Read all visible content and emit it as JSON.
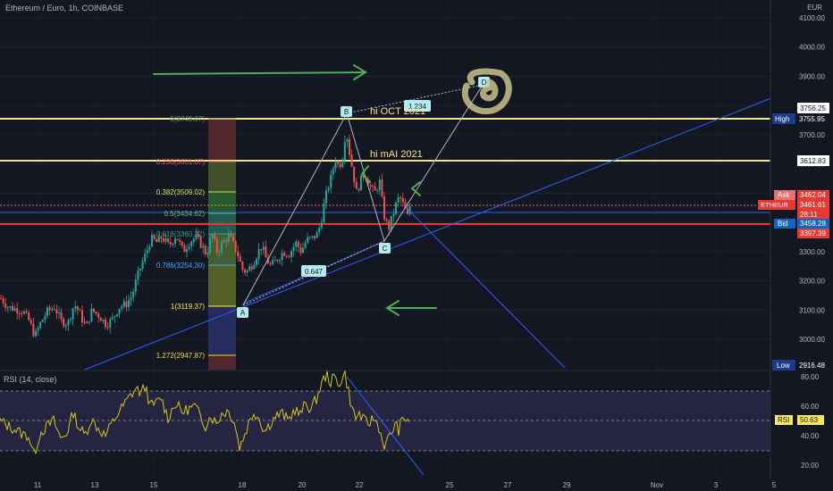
{
  "header": {
    "symbol": "Ethereum / Euro, 1h, COINBASE",
    "currency": "EUR",
    "rsi_label": "RSI (14, close)"
  },
  "colors": {
    "background": "#131722",
    "grid": "#1e222d",
    "up": "#26a69a",
    "down": "#ef5350",
    "rsi_line": "#d4c41a",
    "rsi_band": "#4a3f7a",
    "trendline": "#2962ff",
    "level_line": "#f0e68c",
    "bid_line": "#e53935",
    "arrow": "#4caf50"
  },
  "axis": {
    "price_ticks": [
      "4100.00",
      "4000.00",
      "3900.00",
      "3800.00",
      "3700.00",
      "3600.00",
      "3500.00",
      "3400.00",
      "3300.00",
      "3200.00",
      "3100.00",
      "3000.00"
    ],
    "rsi_ticks": [
      "80.00",
      "60.00",
      "40.00",
      "20.00"
    ],
    "time_ticks": [
      "11",
      "13",
      "15",
      "18",
      "20",
      "22",
      "25",
      "27",
      "29",
      "Nov",
      "3",
      "5"
    ]
  },
  "price_labels": {
    "level1": "3756.25",
    "high": "3755.95",
    "high_text": "High",
    "level2": "3612.83",
    "ask": "3462.04",
    "ask_text": "Ask",
    "symbol_tag": "ETHEUR",
    "last": "3461.61",
    "countdown": "28:11",
    "bid": "3458.28",
    "bid_text": "Bid",
    "support": "3397.39",
    "low": "2916.48",
    "low_text": "Low",
    "rsi_tag": "RSI",
    "rsi_value": "50.63"
  },
  "fib_levels": [
    "0(3749.07)",
    "0.236(3601.07)",
    "0.382(3509.02)",
    "0.5(3434.62)",
    "0.618(3360.22)",
    "0.786(3254.30)",
    "1(3119.37)",
    "1.272(2947.87)"
  ],
  "annotations": {
    "hi_oct": "hi OCT 2021",
    "hi_mai": "hi mAI 2021",
    "point_a": "A",
    "point_b": "B",
    "point_c": "C",
    "point_d": "D",
    "ratio_bc": "0.647",
    "ratio_cd": "1.234"
  },
  "chart_data": {
    "type": "candlestick",
    "ylim": [
      2916.48,
      4100
    ],
    "rsi_ylim": [
      20,
      80
    ],
    "trend": [
      [
        0,
        3140
      ],
      [
        8,
        3110
      ],
      [
        15,
        3105
      ],
      [
        25,
        3095
      ],
      [
        32,
        3060
      ],
      [
        38,
        3010
      ],
      [
        45,
        3060
      ],
      [
        52,
        3095
      ],
      [
        60,
        3110
      ],
      [
        68,
        3060
      ],
      [
        75,
        3055
      ],
      [
        82,
        3120
      ],
      [
        88,
        3090
      ],
      [
        95,
        3040
      ],
      [
        102,
        3100
      ],
      [
        110,
        3080
      ],
      [
        118,
        3050
      ],
      [
        125,
        3070
      ],
      [
        132,
        3110
      ],
      [
        140,
        3120
      ],
      [
        147,
        3150
      ],
      [
        152,
        3210
      ],
      [
        158,
        3260
      ],
      [
        163,
        3300
      ],
      [
        168,
        3345
      ],
      [
        175,
        3330
      ],
      [
        180,
        3350
      ],
      [
        188,
        3320
      ],
      [
        196,
        3355
      ],
      [
        204,
        3300
      ],
      [
        210,
        3330
      ],
      [
        218,
        3350
      ],
      [
        225,
        3320
      ],
      [
        230,
        3290
      ],
      [
        236,
        3360
      ],
      [
        242,
        3300
      ],
      [
        248,
        3330
      ],
      [
        255,
        3355
      ],
      [
        260,
        3325
      ],
      [
        265,
        3290
      ],
      [
        270,
        3240
      ],
      [
        275,
        3230
      ],
      [
        282,
        3260
      ],
      [
        288,
        3300
      ],
      [
        292,
        3320
      ],
      [
        296,
        3280
      ],
      [
        302,
        3250
      ],
      [
        308,
        3270
      ],
      [
        316,
        3300
      ],
      [
        322,
        3290
      ],
      [
        330,
        3330
      ],
      [
        336,
        3300
      ],
      [
        342,
        3340
      ],
      [
        348,
        3345
      ],
      [
        354,
        3360
      ],
      [
        358,
        3400
      ],
      [
        362,
        3470
      ],
      [
        366,
        3520
      ],
      [
        370,
        3560
      ],
      [
        374,
        3620
      ],
      [
        378,
        3590
      ],
      [
        382,
        3620
      ],
      [
        386,
        3720
      ],
      [
        390,
        3640
      ],
      [
        394,
        3570
      ],
      [
        398,
        3500
      ],
      [
        402,
        3540
      ],
      [
        407,
        3570
      ],
      [
        412,
        3530
      ],
      [
        418,
        3500
      ],
      [
        424,
        3540
      ],
      [
        428,
        3430
      ],
      [
        431,
        3400
      ],
      [
        434,
        3380
      ],
      [
        438,
        3420
      ],
      [
        442,
        3460
      ],
      [
        446,
        3490
      ],
      [
        450,
        3460
      ],
      [
        455,
        3420
      ],
      [
        458,
        3462
      ]
    ],
    "rsi": [
      [
        0,
        50
      ],
      [
        8,
        47
      ],
      [
        15,
        45
      ],
      [
        25,
        41
      ],
      [
        32,
        40
      ],
      [
        38,
        27
      ],
      [
        45,
        42
      ],
      [
        52,
        46
      ],
      [
        60,
        50
      ],
      [
        68,
        38
      ],
      [
        75,
        42
      ],
      [
        82,
        56
      ],
      [
        88,
        46
      ],
      [
        95,
        40
      ],
      [
        102,
        51
      ],
      [
        110,
        45
      ],
      [
        118,
        40
      ],
      [
        125,
        48
      ],
      [
        132,
        55
      ],
      [
        140,
        62
      ],
      [
        147,
        68
      ],
      [
        152,
        72
      ],
      [
        158,
        69
      ],
      [
        163,
        74
      ],
      [
        168,
        60
      ],
      [
        175,
        62
      ],
      [
        180,
        66
      ],
      [
        188,
        52
      ],
      [
        196,
        62
      ],
      [
        204,
        56
      ],
      [
        210,
        58
      ],
      [
        218,
        60
      ],
      [
        225,
        52
      ],
      [
        230,
        47
      ],
      [
        236,
        54
      ],
      [
        242,
        48
      ],
      [
        248,
        55
      ],
      [
        255,
        57
      ],
      [
        262,
        50
      ],
      [
        268,
        32
      ],
      [
        272,
        38
      ],
      [
        278,
        48
      ],
      [
        284,
        56
      ],
      [
        290,
        52
      ],
      [
        296,
        43
      ],
      [
        302,
        48
      ],
      [
        308,
        53
      ],
      [
        316,
        55
      ],
      [
        322,
        50
      ],
      [
        330,
        58
      ],
      [
        336,
        54
      ],
      [
        342,
        62
      ],
      [
        348,
        58
      ],
      [
        354,
        65
      ],
      [
        358,
        72
      ],
      [
        362,
        78
      ],
      [
        366,
        82
      ],
      [
        370,
        76
      ],
      [
        374,
        80
      ],
      [
        378,
        75
      ],
      [
        382,
        78
      ],
      [
        386,
        82
      ],
      [
        390,
        70
      ],
      [
        394,
        58
      ],
      [
        398,
        52
      ],
      [
        402,
        55
      ],
      [
        407,
        50
      ],
      [
        412,
        48
      ],
      [
        418,
        52
      ],
      [
        424,
        46
      ],
      [
        428,
        36
      ],
      [
        431,
        33
      ],
      [
        434,
        37
      ],
      [
        438,
        42
      ],
      [
        442,
        48
      ],
      [
        446,
        44
      ],
      [
        450,
        50
      ],
      [
        455,
        52
      ],
      [
        458,
        50.63
      ]
    ]
  }
}
